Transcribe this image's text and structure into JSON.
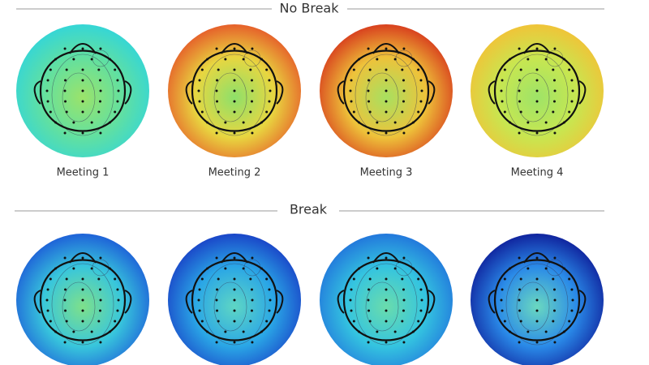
{
  "sections": [
    {
      "title": "No Break",
      "maps": [
        {
          "label": "Meeting 1"
        },
        {
          "label": "Meeting 2"
        },
        {
          "label": "Meeting 3"
        },
        {
          "label": "Meeting 4"
        }
      ]
    },
    {
      "title": "Break"
    }
  ]
}
